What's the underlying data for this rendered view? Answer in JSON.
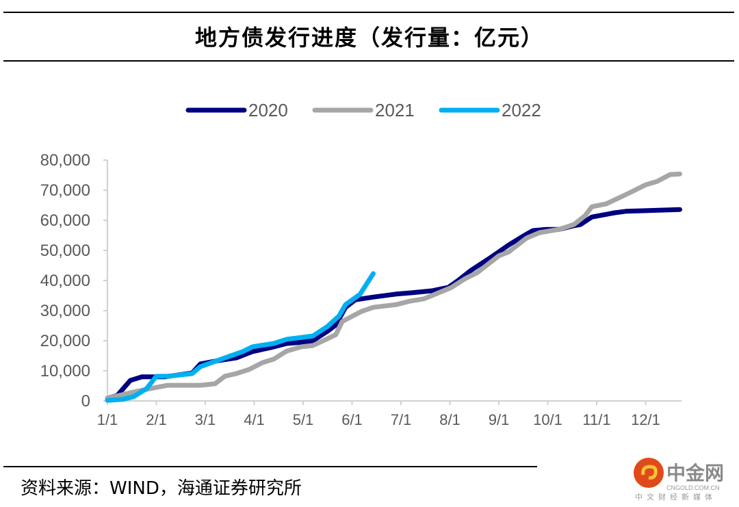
{
  "chart_data": {
    "type": "line",
    "title": "地方债发行进度（发行量：亿元）",
    "xlabel": "",
    "ylabel": "",
    "ylim": [
      0,
      80000
    ],
    "yticks": [
      "0",
      "10,000",
      "20,000",
      "30,000",
      "40,000",
      "50,000",
      "60,000",
      "70,000",
      "80,000"
    ],
    "xticks": [
      "1/1",
      "2/1",
      "3/1",
      "4/1",
      "5/1",
      "6/1",
      "7/1",
      "8/1",
      "9/1",
      "10/1",
      "11/1",
      "12/1"
    ],
    "grid": false,
    "legend": "top",
    "series": [
      {
        "name": "2020",
        "color": "#000080",
        "x": [
          "01-01",
          "01-07",
          "01-15",
          "01-22",
          "02-06",
          "02-23",
          "02-28",
          "03-09",
          "03-20",
          "03-30",
          "04-11",
          "04-21",
          "04-30",
          "05-07",
          "05-16",
          "05-21",
          "05-27",
          "06-03",
          "06-14",
          "06-28",
          "07-07",
          "07-20",
          "07-30",
          "08-06",
          "08-14",
          "08-25",
          "08-31",
          "09-07",
          "09-18",
          "09-22",
          "09-30",
          "10-08",
          "10-17",
          "10-21",
          "10-28",
          "11-12",
          "11-19",
          "12-01",
          "12-22"
        ],
        "y": [
          900,
          1800,
          6800,
          8000,
          8000,
          9300,
          12300,
          13400,
          14300,
          16400,
          17700,
          19100,
          19500,
          20000,
          23200,
          25200,
          31100,
          33600,
          34500,
          35500,
          35900,
          36600,
          37700,
          40000,
          43400,
          47300,
          49500,
          51800,
          55400,
          56600,
          57000,
          57000,
          58200,
          58600,
          61100,
          62500,
          63000,
          63200,
          63600
        ]
      },
      {
        "name": "2021",
        "color": "#A6A6A6",
        "x": [
          "01-01",
          "01-19",
          "02-01",
          "02-08",
          "02-28",
          "03-07",
          "03-13",
          "03-20",
          "03-28",
          "04-06",
          "04-13",
          "04-21",
          "04-30",
          "05-07",
          "05-16",
          "05-21",
          "05-25",
          "06-07",
          "06-14",
          "06-28",
          "07-07",
          "07-15",
          "07-24",
          "08-02",
          "08-10",
          "08-18",
          "08-31",
          "09-07",
          "09-18",
          "09-26",
          "10-08",
          "10-17",
          "10-24",
          "10-28",
          "11-07",
          "11-21",
          "12-01",
          "12-08",
          "12-16",
          "12-22"
        ],
        "y": [
          900,
          3200,
          4500,
          5200,
          5200,
          5700,
          8200,
          9100,
          10500,
          12700,
          13900,
          16600,
          18000,
          18400,
          20700,
          22000,
          26400,
          29800,
          31100,
          32000,
          33200,
          33900,
          35900,
          37700,
          40500,
          42700,
          48200,
          49500,
          54100,
          55900,
          57000,
          58600,
          61600,
          64500,
          65500,
          69100,
          71800,
          72900,
          75200,
          75400
        ]
      },
      {
        "name": "2022",
        "color": "#00B0F0",
        "x": [
          "01-01",
          "01-10",
          "01-17",
          "01-25",
          "02-01",
          "02-08",
          "02-23",
          "02-28",
          "03-13",
          "03-24",
          "03-30",
          "04-13",
          "04-21",
          "04-30",
          "05-07",
          "05-16",
          "05-23",
          "05-27",
          "06-06",
          "06-14"
        ],
        "y": [
          200,
          500,
          1400,
          4100,
          8200,
          8200,
          9100,
          11400,
          14300,
          16400,
          18000,
          19100,
          20500,
          21100,
          21600,
          24800,
          28200,
          32000,
          35500,
          42300
        ]
      }
    ]
  },
  "source": "资料来源：WIND，海通证券研究所",
  "watermark": {
    "name": "中金网",
    "domain": "CNGOLD.COM.CN",
    "tagline": "中文财经新媒体"
  }
}
